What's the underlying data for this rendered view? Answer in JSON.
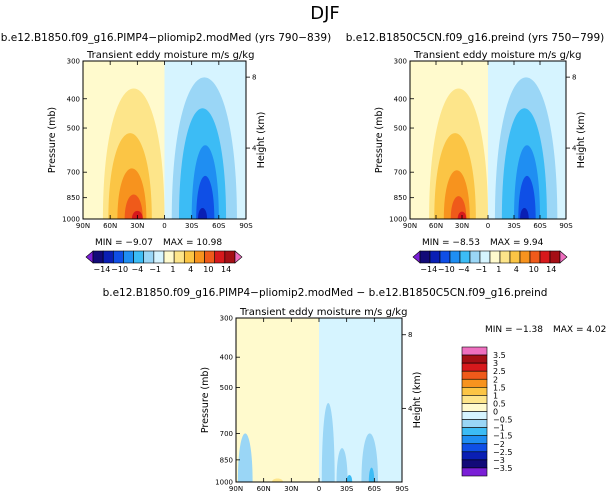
{
  "figure": {
    "title": "DJF",
    "diff_title": "b.e12.B1850.f09_g16.PIMP4−pliomip2.modMed − b.e12.B1850C5CN.f09_g16.preind"
  },
  "colors": {
    "bg": "#ffffff",
    "neutral_pos": "#fffacd",
    "neutral_neg": "#d6f4ff",
    "frame": "#000000"
  },
  "icons": [
    "colorbar-triangle-left-icon",
    "colorbar-triangle-right-icon"
  ],
  "panels": [
    {
      "id": "left",
      "run_title": "b.e12.B1850.f09_g16.PIMP4−pliomip2.modMed (yrs 790−839)",
      "subtitle": "Transient eddy moisture m/s g/kg",
      "ylabel": "Pressure (mb)",
      "y2label": "Height (km)",
      "min_text": "MIN =  −9.07",
      "max_text": "MAX =  10.98"
    },
    {
      "id": "right",
      "run_title": "b.e12.B1850C5CN.f09_g16.preind (yrs 750−799)",
      "subtitle": "Transient eddy moisture m/s g/kg",
      "ylabel": "Pressure (mb)",
      "y2label": "Height (km)",
      "min_text": "MIN =  −8.53",
      "max_text": "MAX =  9.94"
    },
    {
      "id": "diff",
      "run_title": "",
      "subtitle": "Transient eddy moisture m/s g/kg",
      "ylabel": "Pressure (mb)",
      "y2label": "Height (km)",
      "min_text": "MIN =  −1.38",
      "max_text": "MAX =  4.02"
    }
  ],
  "chart_data": [
    {
      "type": "heatmap",
      "panel": "left",
      "title": "Transient eddy moisture m/s g/kg",
      "xlabel": "",
      "ylabel": "Pressure (mb)",
      "y2label": "Height (km)",
      "x_ticks": [
        "90N",
        "60N",
        "30N",
        "0",
        "30S",
        "60S",
        "90S"
      ],
      "x_tick_values": [
        90,
        60,
        30,
        0,
        -30,
        -60,
        -90
      ],
      "y_ticks": [
        "300",
        "400",
        "500",
        "700",
        "850",
        "1000"
      ],
      "y_tick_values": [
        300,
        400,
        500,
        700,
        850,
        1000
      ],
      "y2_ticks": [
        "8",
        "4"
      ],
      "y2_tick_values": [
        8,
        4
      ],
      "xlim": [
        90,
        -90
      ],
      "ylim": [
        1000,
        300
      ],
      "min": -9.07,
      "max": 10.98,
      "features": [
        {
          "lat": 34,
          "p_top": 370,
          "value": 1,
          "lat_half_width": 34
        },
        {
          "lat": 38,
          "p_top": 520,
          "value": 2,
          "lat_half_width": 24
        },
        {
          "lat": 36,
          "p_top": 680,
          "value": 4,
          "lat_half_width": 16
        },
        {
          "lat": 34,
          "p_top": 830,
          "value": 7,
          "lat_half_width": 10
        },
        {
          "lat": 30,
          "p_top": 940,
          "value": 10,
          "lat_half_width": 6
        },
        {
          "lat": -44,
          "p_top": 340,
          "value": -0.5,
          "lat_half_width": 36
        },
        {
          "lat": -42,
          "p_top": 430,
          "value": -1,
          "lat_half_width": 26
        },
        {
          "lat": -45,
          "p_top": 570,
          "value": -2,
          "lat_half_width": 15
        },
        {
          "lat": -45,
          "p_top": 720,
          "value": -4,
          "lat_half_width": 10
        },
        {
          "lat": -42,
          "p_top": 920,
          "value": -7,
          "lat_half_width": 5
        }
      ],
      "zero_line_lat": 0
    },
    {
      "type": "heatmap",
      "panel": "right",
      "title": "Transient eddy moisture m/s g/kg",
      "xlabel": "",
      "ylabel": "Pressure (mb)",
      "y2label": "Height (km)",
      "x_ticks": [
        "90N",
        "60N",
        "30N",
        "0",
        "30S",
        "60S",
        "90S"
      ],
      "x_tick_values": [
        90,
        60,
        30,
        0,
        -30,
        -60,
        -90
      ],
      "y_ticks": [
        "300",
        "400",
        "500",
        "700",
        "850",
        "1000"
      ],
      "y_tick_values": [
        300,
        400,
        500,
        700,
        850,
        1000
      ],
      "y2_ticks": [
        "8",
        "4"
      ],
      "y2_tick_values": [
        8,
        4
      ],
      "xlim": [
        90,
        -90
      ],
      "ylim": [
        1000,
        300
      ],
      "min": -8.53,
      "max": 9.94,
      "features": [
        {
          "lat": 34,
          "p_top": 370,
          "value": 1,
          "lat_half_width": 34
        },
        {
          "lat": 38,
          "p_top": 520,
          "value": 2,
          "lat_half_width": 24
        },
        {
          "lat": 36,
          "p_top": 690,
          "value": 4,
          "lat_half_width": 15
        },
        {
          "lat": 34,
          "p_top": 840,
          "value": 7,
          "lat_half_width": 9
        },
        {
          "lat": 30,
          "p_top": 945,
          "value": 9,
          "lat_half_width": 5
        },
        {
          "lat": -44,
          "p_top": 340,
          "value": -0.5,
          "lat_half_width": 36
        },
        {
          "lat": -42,
          "p_top": 430,
          "value": -1,
          "lat_half_width": 26
        },
        {
          "lat": -45,
          "p_top": 570,
          "value": -2,
          "lat_half_width": 15
        },
        {
          "lat": -45,
          "p_top": 720,
          "value": -4,
          "lat_half_width": 10
        },
        {
          "lat": -42,
          "p_top": 920,
          "value": -7,
          "lat_half_width": 5
        }
      ],
      "zero_line_lat": 0
    },
    {
      "type": "heatmap",
      "panel": "diff",
      "title": "Transient eddy moisture m/s g/kg",
      "xlabel": "",
      "ylabel": "Pressure (mb)",
      "y2label": "Height (km)",
      "x_ticks": [
        "90N",
        "60N",
        "30N",
        "0",
        "30S",
        "60S",
        "90S"
      ],
      "x_tick_values": [
        90,
        60,
        30,
        0,
        -30,
        -60,
        -90
      ],
      "y_ticks": [
        "300",
        "400",
        "500",
        "700",
        "850",
        "1000"
      ],
      "y_tick_values": [
        300,
        400,
        500,
        700,
        850,
        1000
      ],
      "y2_ticks": [
        "8",
        "4"
      ],
      "y2_tick_values": [
        8,
        4
      ],
      "xlim": [
        90,
        -90
      ],
      "ylim": [
        1000,
        300
      ],
      "min": -1.38,
      "max": 4.02,
      "features": [
        {
          "lat": -10,
          "p_top": 560,
          "value": -0.5,
          "lat_half_width": 7
        },
        {
          "lat": -25,
          "p_top": 780,
          "value": -0.5,
          "lat_half_width": 6
        },
        {
          "lat": -55,
          "p_top": 700,
          "value": -0.5,
          "lat_half_width": 9
        },
        {
          "lat": -57,
          "p_top": 900,
          "value": -1,
          "lat_half_width": 3
        },
        {
          "lat": -33,
          "p_top": 950,
          "value": -1,
          "lat_half_width": 3
        },
        {
          "lat": 80,
          "p_top": 700,
          "value": -0.5,
          "lat_half_width": 8
        },
        {
          "lat": 45,
          "p_top": 955,
          "value": 0.5,
          "lat_half_width": 12
        },
        {
          "lat": 45,
          "p_top": 975,
          "value": 1,
          "lat_half_width": 6
        }
      ],
      "zero_line_lat": 0
    }
  ],
  "colorbars": [
    {
      "id": "left",
      "labels": [
        "−14",
        "−10",
        "−4",
        "−1",
        "1",
        "4",
        "10",
        "14"
      ],
      "colors": [
        "#7a1fd6",
        "#120a78",
        "#0a1fb4",
        "#0f4fe6",
        "#1f8ef2",
        "#3cbcf5",
        "#9ad6f6",
        "#d6f4ff",
        "#fffacd",
        "#fde58a",
        "#fbc545",
        "#f7931e",
        "#ef5a1a",
        "#d7191c",
        "#a50f15",
        "#ee6fbf"
      ]
    },
    {
      "id": "right",
      "labels": [
        "−14",
        "−10",
        "−4",
        "−1",
        "1",
        "4",
        "10",
        "14"
      ],
      "colors": [
        "#7a1fd6",
        "#120a78",
        "#0a1fb4",
        "#0f4fe6",
        "#1f8ef2",
        "#3cbcf5",
        "#9ad6f6",
        "#d6f4ff",
        "#fffacd",
        "#fde58a",
        "#fbc545",
        "#f7931e",
        "#ef5a1a",
        "#d7191c",
        "#a50f15",
        "#ee6fbf"
      ]
    },
    {
      "id": "diff",
      "labels": [
        "3.5",
        "3",
        "2.5",
        "2",
        "1.5",
        "1",
        "0.5",
        "0",
        "−0.5",
        "−1",
        "−1.5",
        "−2",
        "−2.5",
        "−3",
        "−3.5"
      ],
      "colors": [
        "#ee6fbf",
        "#a50f15",
        "#d7191c",
        "#ef5a1a",
        "#f7931e",
        "#fbc545",
        "#fde58a",
        "#fffacd",
        "#d6f4ff",
        "#9ad6f6",
        "#3cbcf5",
        "#1f8ef2",
        "#0f4fe6",
        "#0a1fb4",
        "#120a78",
        "#7a1fd6"
      ]
    }
  ]
}
